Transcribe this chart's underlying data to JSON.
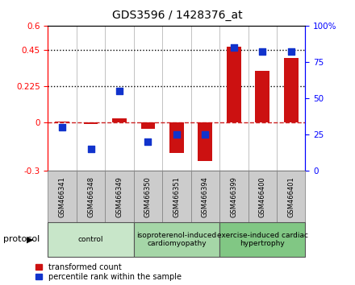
{
  "title": "GDS3596 / 1428376_at",
  "samples": [
    "GSM466341",
    "GSM466348",
    "GSM466349",
    "GSM466350",
    "GSM466351",
    "GSM466394",
    "GSM466399",
    "GSM466400",
    "GSM466401"
  ],
  "transformed_count": [
    0.005,
    -0.01,
    0.025,
    -0.04,
    -0.19,
    -0.24,
    0.47,
    0.32,
    0.4
  ],
  "percentile_rank_pct": [
    30,
    15,
    55,
    20,
    25,
    25,
    85,
    82,
    82
  ],
  "groups": [
    {
      "label": "control",
      "start": 0,
      "end": 3,
      "color": "#c8e6c9"
    },
    {
      "label": "isoproterenol-induced\ncardiomyopathy",
      "start": 3,
      "end": 6,
      "color": "#a5d6a7"
    },
    {
      "label": "exercise-induced cardiac\nhypertrophy",
      "start": 6,
      "end": 9,
      "color": "#81c784"
    }
  ],
  "ylim_left": [
    -0.3,
    0.6
  ],
  "ylim_right": [
    0.0,
    100.0
  ],
  "yticks_left": [
    -0.3,
    0.0,
    0.225,
    0.45,
    0.6
  ],
  "ytick_labels_left": [
    "-0.3",
    "0",
    "0.225",
    "0.45",
    "0.6"
  ],
  "yticks_right": [
    0.0,
    25.0,
    50.0,
    75.0,
    100.0
  ],
  "ytick_labels_right": [
    "0",
    "25",
    "50",
    "75",
    "100%"
  ],
  "bar_color": "#cc1111",
  "dot_color": "#1133cc",
  "bar_width": 0.5,
  "dot_size": 40,
  "legend_items": [
    "transformed count",
    "percentile rank within the sample"
  ],
  "legend_colors": [
    "#cc1111",
    "#1133cc"
  ],
  "protocol_label": "protocol",
  "bg_color": "#ffffff",
  "plot_bg": "#ffffff",
  "sample_box_color": "#cccccc",
  "sample_box_edge": "#888888"
}
